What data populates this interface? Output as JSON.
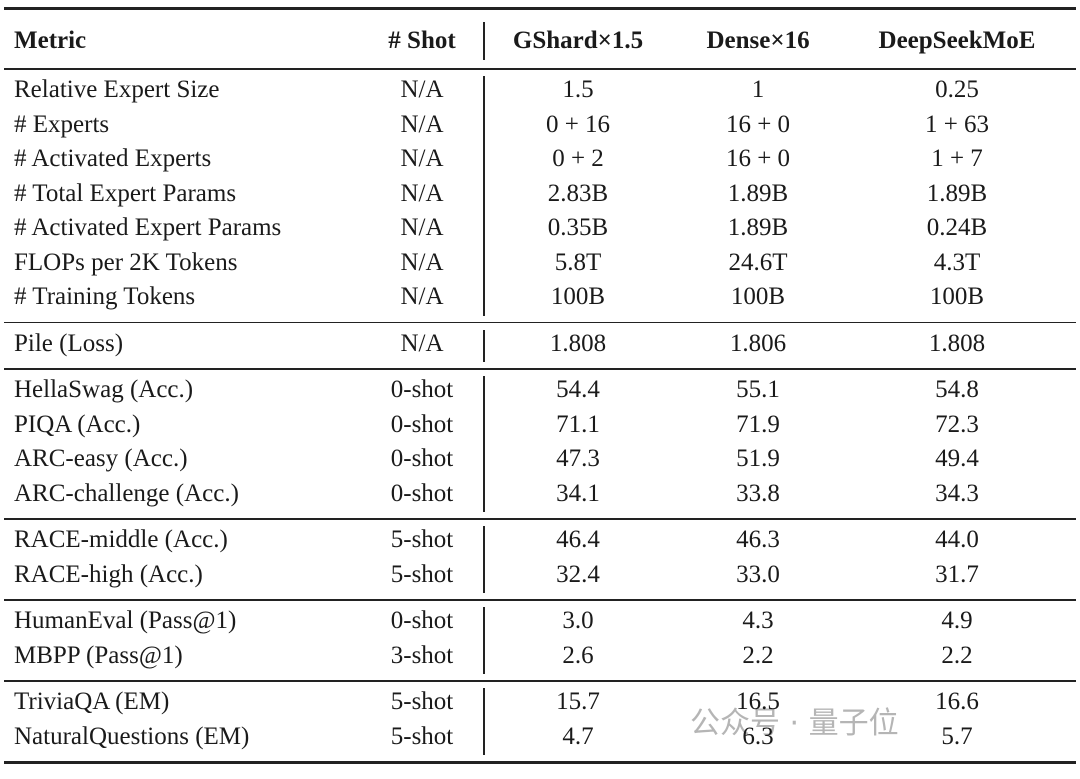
{
  "table": {
    "header": [
      "Metric",
      "# Shot",
      "GShard×1.5",
      "Dense×16",
      "DeepSeekMoE"
    ],
    "groups": [
      [
        [
          "Relative Expert Size",
          "N/A",
          "1.5",
          "1",
          "0.25"
        ],
        [
          "# Experts",
          "N/A",
          "0 + 16",
          "16 + 0",
          "1 + 63"
        ],
        [
          "# Activated Experts",
          "N/A",
          "0 + 2",
          "16 + 0",
          "1 + 7"
        ],
        [
          "# Total Expert Params",
          "N/A",
          "2.83B",
          "1.89B",
          "1.89B"
        ],
        [
          "# Activated Expert Params",
          "N/A",
          "0.35B",
          "1.89B",
          "0.24B"
        ],
        [
          "FLOPs per 2K Tokens",
          "N/A",
          "5.8T",
          "24.6T",
          "4.3T"
        ],
        [
          "# Training Tokens",
          "N/A",
          "100B",
          "100B",
          "100B"
        ]
      ],
      [
        [
          "Pile (Loss)",
          "N/A",
          "1.808",
          "1.806",
          "1.808"
        ]
      ],
      [
        [
          "HellaSwag (Acc.)",
          "0-shot",
          "54.4",
          "55.1",
          "54.8"
        ],
        [
          "PIQA (Acc.)",
          "0-shot",
          "71.1",
          "71.9",
          "72.3"
        ],
        [
          "ARC-easy (Acc.)",
          "0-shot",
          "47.3",
          "51.9",
          "49.4"
        ],
        [
          "ARC-challenge (Acc.)",
          "0-shot",
          "34.1",
          "33.8",
          "34.3"
        ]
      ],
      [
        [
          "RACE-middle (Acc.)",
          "5-shot",
          "46.4",
          "46.3",
          "44.0"
        ],
        [
          "RACE-high (Acc.)",
          "5-shot",
          "32.4",
          "33.0",
          "31.7"
        ]
      ],
      [
        [
          "HumanEval (Pass@1)",
          "0-shot",
          "3.0",
          "4.3",
          "4.9"
        ],
        [
          "MBPP (Pass@1)",
          "3-shot",
          "2.6",
          "2.2",
          "2.2"
        ]
      ],
      [
        [
          "TriviaQA (EM)",
          "5-shot",
          "15.7",
          "16.5",
          "16.6"
        ],
        [
          "NaturalQuestions (EM)",
          "5-shot",
          "4.7",
          "6.3",
          "5.7"
        ]
      ]
    ]
  },
  "watermark": "公众号 · 量子位"
}
